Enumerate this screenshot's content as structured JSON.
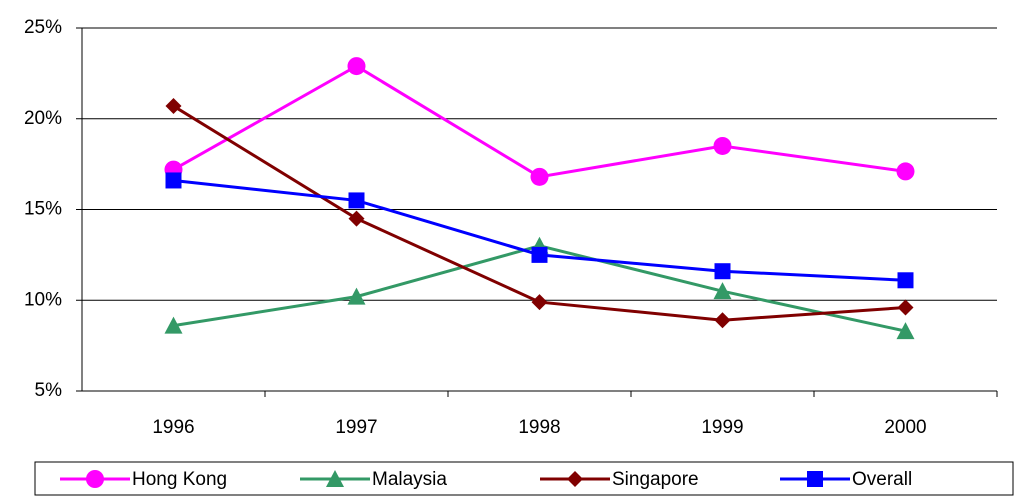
{
  "chart_data": {
    "type": "line",
    "categories": [
      "1996",
      "1997",
      "1998",
      "1999",
      "2000"
    ],
    "series": [
      {
        "name": "Hong Kong",
        "color": "#ff00ff",
        "marker": "circle",
        "values": [
          17.2,
          22.9,
          16.8,
          18.5,
          17.1
        ]
      },
      {
        "name": "Malaysia",
        "color": "#339966",
        "marker": "triangle",
        "values": [
          8.6,
          10.2,
          13.0,
          10.5,
          8.3
        ]
      },
      {
        "name": "Singapore",
        "color": "#800000",
        "marker": "diamond",
        "values": [
          20.7,
          14.5,
          9.9,
          8.9,
          9.6
        ]
      },
      {
        "name": "Overall",
        "color": "#0000ff",
        "marker": "square",
        "values": [
          16.6,
          15.5,
          12.5,
          11.6,
          11.1
        ]
      }
    ],
    "ylim": [
      5,
      25
    ],
    "yticks": [
      {
        "value": 5,
        "label": "5%"
      },
      {
        "value": 10,
        "label": "10%"
      },
      {
        "value": 15,
        "label": "15%"
      },
      {
        "value": 20,
        "label": "20%"
      },
      {
        "value": 25,
        "label": "25%"
      }
    ],
    "grid": true,
    "legend": "bottom"
  }
}
